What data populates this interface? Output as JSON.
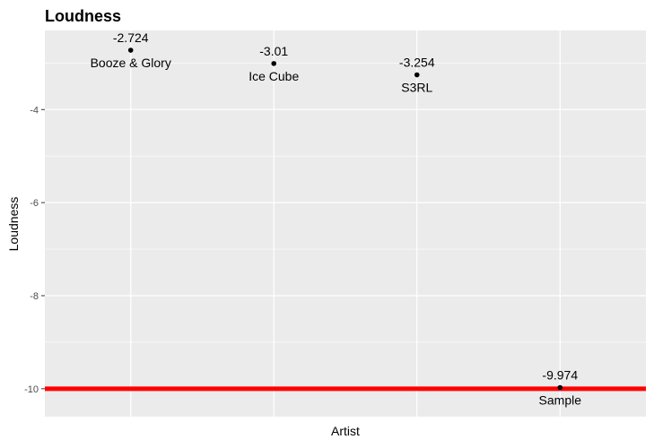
{
  "chart_data": {
    "type": "scatter",
    "title": "Loudness",
    "xlabel": "Artist",
    "ylabel": "Loudness",
    "ylim": [
      -10.6,
      -2.3
    ],
    "y_ticks": [
      -4,
      -6,
      -8,
      -10
    ],
    "y_tick_labels": [
      "-4",
      "-6",
      "-8",
      "-10"
    ],
    "x_axis_tick_labels_shown": false,
    "grid": true,
    "legend": "none",
    "points": [
      {
        "artist": "Booze & Glory",
        "value": -2.724,
        "value_label": "-2.724"
      },
      {
        "artist": "Ice Cube",
        "value": -3.01,
        "value_label": "-3.01"
      },
      {
        "artist": "S3RL",
        "value": -3.254,
        "value_label": "-3.254"
      },
      {
        "artist": "Sample",
        "value": -9.974,
        "value_label": "-9.974"
      }
    ],
    "reference_line": {
      "value": -10,
      "color": "#ff0000"
    },
    "colors": {
      "panel_background": "#ebebeb",
      "grid_major": "#ffffff",
      "point": "#000000",
      "text": "#000000",
      "axis_tick_text": "#4d4d4d"
    }
  }
}
